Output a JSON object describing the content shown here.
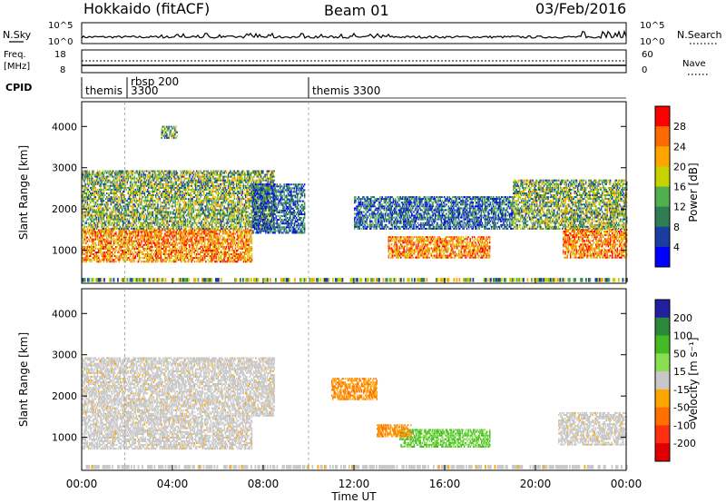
{
  "header": {
    "radar": "Hokkaido (fitACF)",
    "beam": "Beam 01",
    "date": "03/Feb/2016"
  },
  "noise_panel": {
    "left_label": "N.Sky",
    "right_label": "N.Search",
    "ticks": [
      "10^5",
      "10^0"
    ],
    "right_ticks": [
      "10^5",
      "10^0"
    ]
  },
  "freq_panel": {
    "left_label_1": "Freq.",
    "left_label_2": "[MHz]",
    "left_ticks": [
      "18",
      "8"
    ],
    "right_ticks": [
      "60",
      "0"
    ],
    "right_label": "Nave"
  },
  "cpid": {
    "label": "CPID",
    "segments": [
      {
        "name": "themis",
        "start_hour": 0,
        "end_hour": 1.9
      },
      {
        "name": "rbsp 200 3300",
        "start_hour": 1.9,
        "end_hour": 10.0
      },
      {
        "name": "themis 3300",
        "start_hour": 10.0,
        "end_hour": 24
      }
    ],
    "text_1": "themis",
    "text_2a": "rbsp 200",
    "text_2b": "3300",
    "text_3": "themis 3300"
  },
  "axes": {
    "ylabel": "Slant Range [km]",
    "yticks": [
      "1000",
      "2000",
      "3000",
      "4000"
    ],
    "xlabel": "Time UT",
    "xticks": [
      "00:00",
      "04:00",
      "08:00",
      "12:00",
      "16:00",
      "20:00",
      "00:00"
    ]
  },
  "colorbars": {
    "power": {
      "label": "Power [dB]",
      "ticks": [
        "28",
        "24",
        "20",
        "16",
        "12",
        "8",
        "4"
      ],
      "colors": [
        "#ff0000",
        "#ff6a00",
        "#ffa500",
        "#c8d200",
        "#4fb050",
        "#2e7d55",
        "#1a3ea0",
        "#0000ff"
      ]
    },
    "velocity": {
      "label": "Velocity [m s⁻¹]",
      "ticks": [
        "200",
        "100",
        "50",
        "15",
        "-15",
        "-50",
        "-100",
        "-200"
      ],
      "colors": [
        "#2020a0",
        "#2a8a3a",
        "#44bb22",
        "#88e050",
        "#c8c8c8",
        "#ffa500",
        "#ff7000",
        "#ff3010",
        "#e00000"
      ]
    }
  },
  "chart_data": {
    "type": "heatmap",
    "title": "Hokkaido (fitACF)",
    "xlabel": "Time UT",
    "ylabel": "Slant Range [km]",
    "xlim_hours": [
      0,
      24
    ],
    "ylim_km": [
      200,
      4600
    ],
    "power_scatter_regions": [
      {
        "t0": 0.0,
        "t1": 7.5,
        "r0": 700,
        "r1": 1500,
        "level": "high"
      },
      {
        "t0": 0.0,
        "t1": 8.5,
        "r0": 1500,
        "r1": 2900,
        "level": "medium"
      },
      {
        "t0": 7.5,
        "t1": 9.8,
        "r0": 1400,
        "r1": 2600,
        "level": "low"
      },
      {
        "t0": 13.5,
        "t1": 18.0,
        "r0": 800,
        "r1": 1300,
        "level": "high"
      },
      {
        "t0": 12.0,
        "t1": 19.0,
        "r0": 1500,
        "r1": 2300,
        "level": "low"
      },
      {
        "t0": 21.2,
        "t1": 24.0,
        "r0": 800,
        "r1": 1500,
        "level": "high"
      },
      {
        "t0": 19.0,
        "t1": 24.0,
        "r0": 1500,
        "r1": 2700,
        "level": "medium"
      },
      {
        "t0": 3.5,
        "t1": 4.2,
        "r0": 3700,
        "r1": 4000,
        "level": "medium"
      }
    ],
    "velocity_scatter_regions": [
      {
        "t0": 0.0,
        "t1": 7.5,
        "r0": 700,
        "r1": 1500,
        "velocity": "ground"
      },
      {
        "t0": 0.0,
        "t1": 8.5,
        "r0": 1500,
        "r1": 2900,
        "velocity": "ground"
      },
      {
        "t0": 14.0,
        "t1": 18.0,
        "r0": 750,
        "r1": 1200,
        "velocity": "positive"
      },
      {
        "t0": 13.0,
        "t1": 14.5,
        "r0": 1000,
        "r1": 1300,
        "velocity": "negative"
      },
      {
        "t0": 21.0,
        "t1": 24.0,
        "r0": 800,
        "r1": 1600,
        "velocity": "ground"
      },
      {
        "t0": 11.0,
        "t1": 13.0,
        "r0": 1900,
        "r1": 2400,
        "velocity": "negative"
      }
    ]
  }
}
